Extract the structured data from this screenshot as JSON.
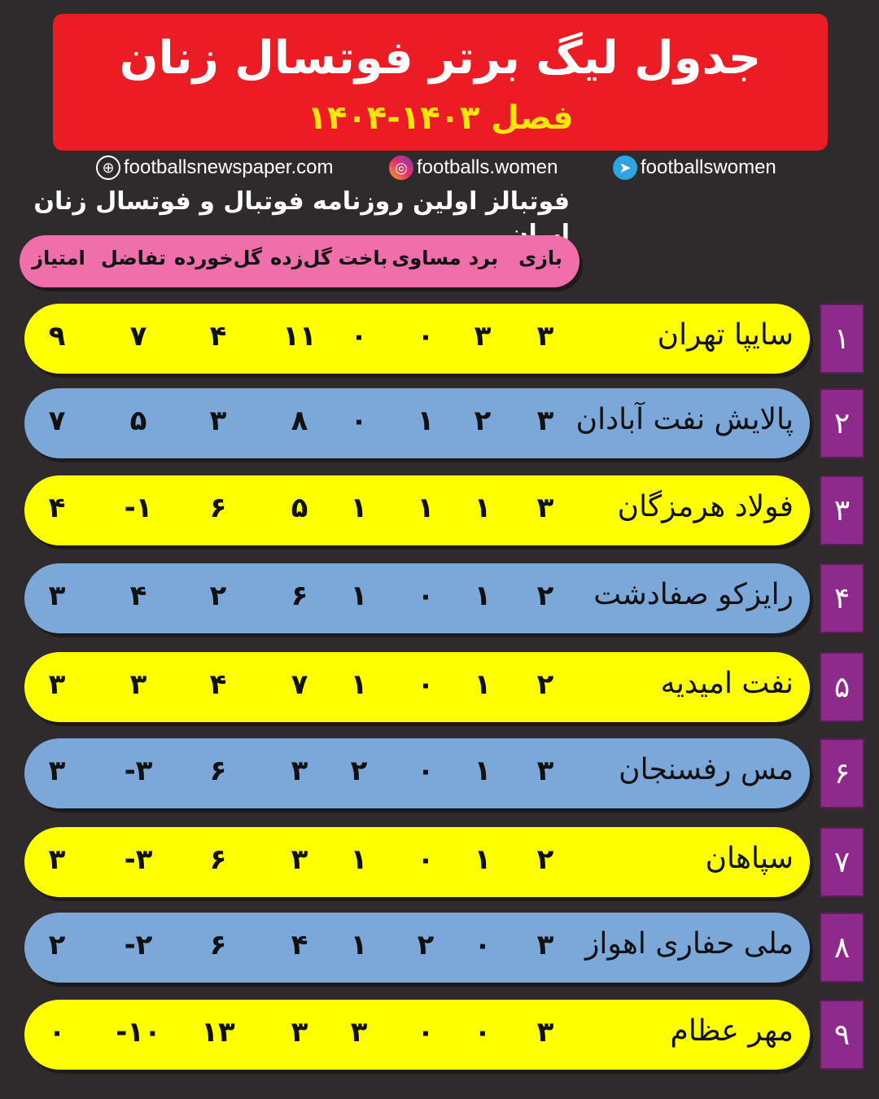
{
  "header": {
    "title": "جدول لیگ برتر فوتسال زنان",
    "season": "فصل ۱۴۰۳-۱۴۰۴",
    "bg_color": "#ec1c24",
    "season_color": "#ffe600"
  },
  "social": {
    "website": "footballsnewspaper.com",
    "instagram": "footballs.women",
    "telegram": "footballswomen"
  },
  "tagline": "فوتبالز اولین روزنامه فوتبال و فوتسال زنان ایران",
  "columns": [
    "بازی",
    "برد",
    "مساوی",
    "باخت",
    "گل‌زده",
    "گل‌خورده",
    "تفاضل",
    "امتیاز"
  ],
  "rows": [
    {
      "rank": "۱",
      "team": "سایپا تهران",
      "values": [
        "۳",
        "۳",
        "۰",
        "۰",
        "۱۱",
        "۴",
        "۷",
        "۹"
      ],
      "color": "yellow"
    },
    {
      "rank": "۲",
      "team": "پالایش نفت آبادان",
      "values": [
        "۳",
        "۲",
        "۱",
        "۰",
        "۸",
        "۳",
        "۵",
        "۷"
      ],
      "color": "blue"
    },
    {
      "rank": "۳",
      "team": "فولاد هرمزگان",
      "values": [
        "۳",
        "۱",
        "۱",
        "۱",
        "۵",
        "۶",
        "-۱",
        "۴"
      ],
      "color": "yellow"
    },
    {
      "rank": "۴",
      "team": "رایزکو صفادشت",
      "values": [
        "۲",
        "۱",
        "۰",
        "۱",
        "۶",
        "۲",
        "۴",
        "۳"
      ],
      "color": "blue"
    },
    {
      "rank": "۵",
      "team": "نفت امیدیه",
      "values": [
        "۲",
        "۱",
        "۰",
        "۱",
        "۷",
        "۴",
        "۳",
        "۳"
      ],
      "color": "yellow"
    },
    {
      "rank": "۶",
      "team": "مس رفسنجان",
      "values": [
        "۳",
        "۱",
        "۰",
        "۲",
        "۳",
        "۶",
        "-۳",
        "۳"
      ],
      "color": "blue"
    },
    {
      "rank": "۷",
      "team": "سپاهان",
      "values": [
        "۲",
        "۱",
        "۰",
        "۱",
        "۳",
        "۶",
        "-۳",
        "۳"
      ],
      "color": "yellow"
    },
    {
      "rank": "۸",
      "team": "ملی حفاری اهواز",
      "values": [
        "۳",
        "۰",
        "۲",
        "۱",
        "۴",
        "۶",
        "-۲",
        "۲"
      ],
      "color": "blue"
    },
    {
      "rank": "۹",
      "team": "مهر عظام",
      "values": [
        "۳",
        "۰",
        "۰",
        "۳",
        "۳",
        "۱۳",
        "-۱۰",
        "۰"
      ],
      "color": "yellow"
    }
  ]
}
